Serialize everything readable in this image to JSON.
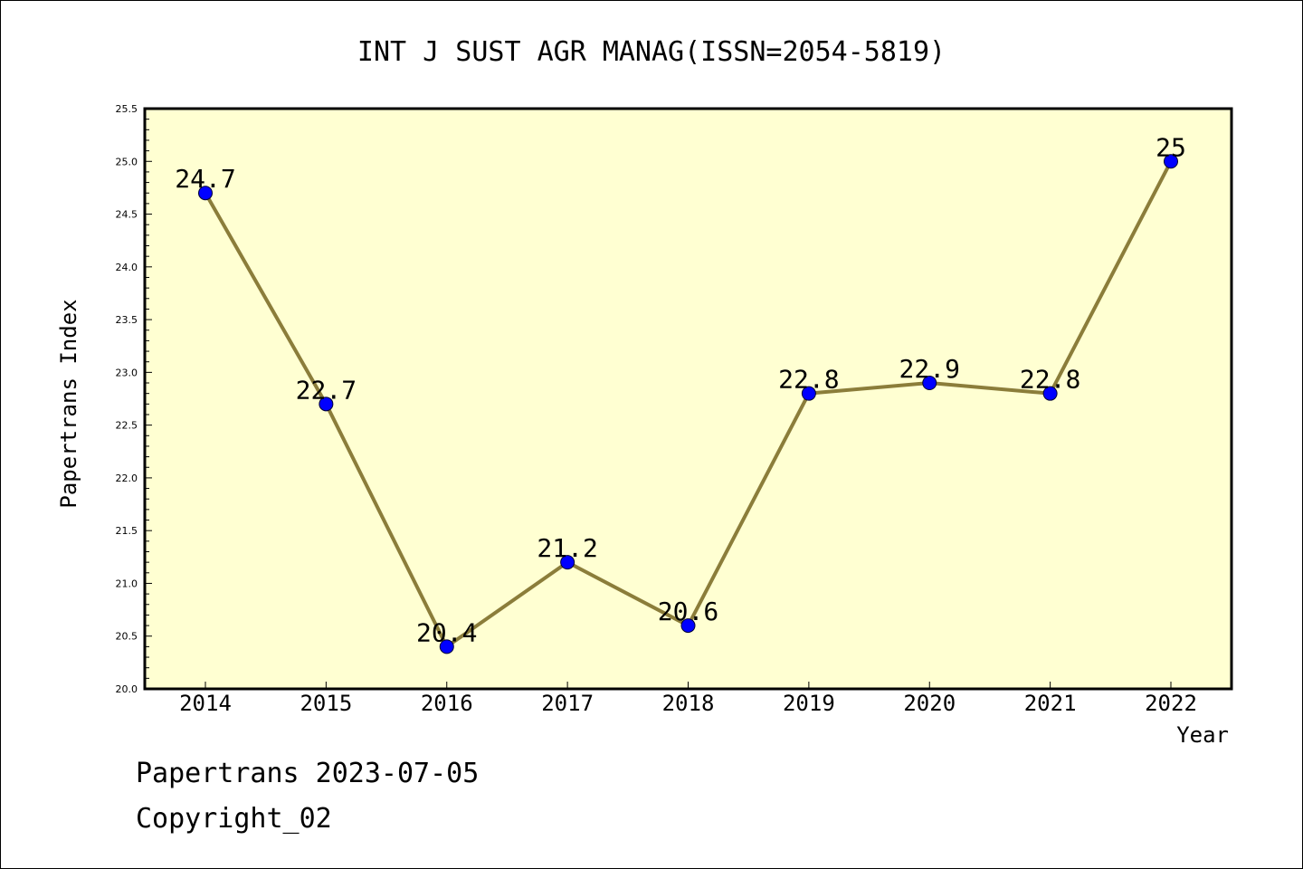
{
  "chart_data": {
    "type": "line",
    "title": "INT J SUST AGR MANAG(ISSN=2054-5819)",
    "xlabel": "Year",
    "ylabel": "Papertrans Index",
    "x": [
      "2014",
      "2015",
      "2016",
      "2017",
      "2018",
      "2019",
      "2020",
      "2021",
      "2022"
    ],
    "series": [
      {
        "values": [
          24.7,
          22.7,
          20.4,
          21.2,
          20.6,
          22.8,
          22.9,
          22.8,
          25
        ],
        "data_labels": [
          "24.7",
          "22.7",
          "20.4",
          "21.2",
          "20.6",
          "22.8",
          "22.9",
          "22.8",
          "25"
        ]
      }
    ],
    "ylim": [
      20.0,
      25.5
    ],
    "yticks": [
      "20.0",
      "20.5",
      "21.0",
      "21.5",
      "22.0",
      "22.5",
      "23.0",
      "23.5",
      "24.0",
      "24.5",
      "25.0",
      "25.5"
    ],
    "grid": false,
    "legend": "none",
    "colors": {
      "plot_background": "#ffffd2",
      "line": "#8b7d3a",
      "marker": "#0000ff"
    }
  },
  "footer": {
    "line1": "Papertrans 2023-07-05",
    "line2": "Copyright_02"
  }
}
